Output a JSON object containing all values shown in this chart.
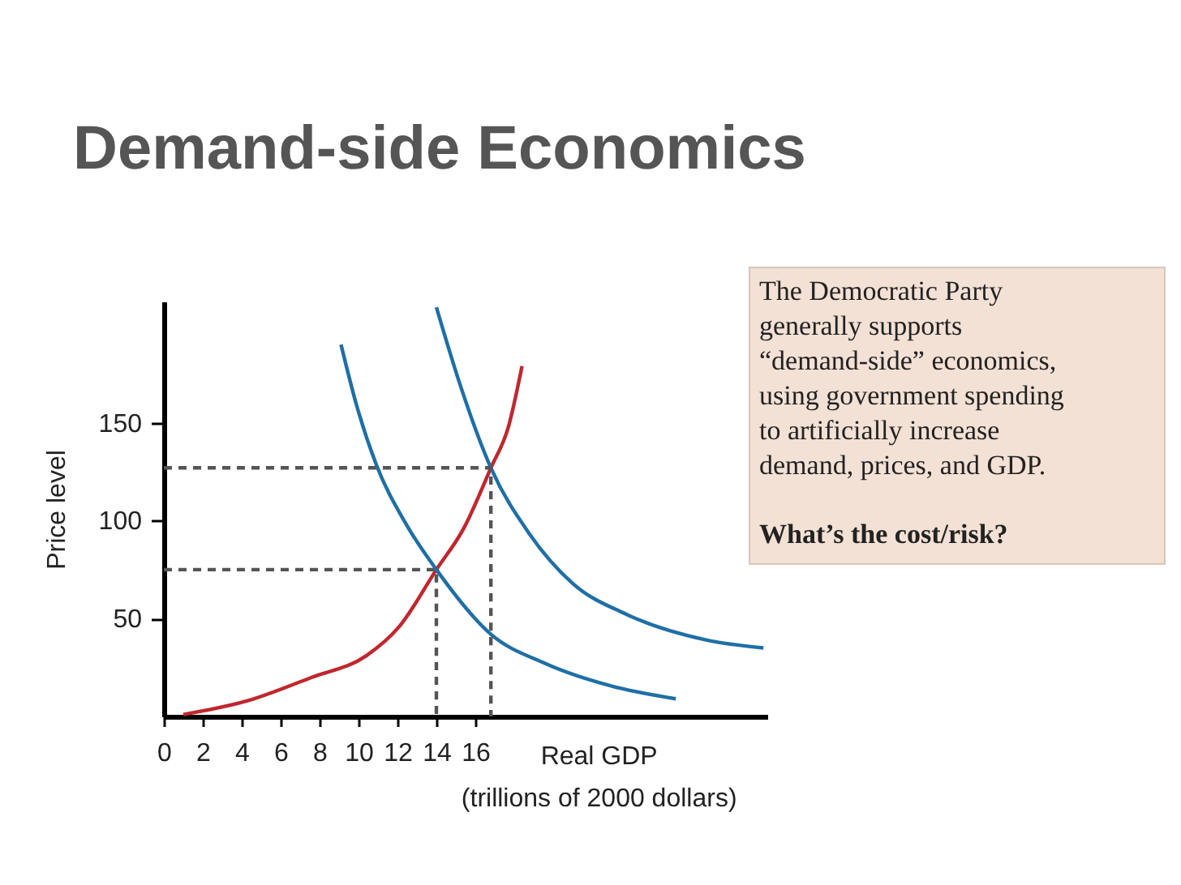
{
  "chart_data": {
    "type": "line",
    "title": "Demand-side Economics",
    "xlabel": "Real GDP\n(trillions of 2000 dollars)",
    "ylabel": "Price level",
    "xlim": [
      0,
      31
    ],
    "xticks": [
      0,
      2,
      4,
      6,
      8,
      10,
      12,
      14,
      16
    ],
    "ylim": [
      0,
      212
    ],
    "yticks": [
      50,
      100,
      150
    ],
    "grid": false,
    "marker": "none",
    "series": [
      {
        "color": "#c0272d",
        "line_style": "solid",
        "x": [
          1,
          4.3,
          7.6,
          10.4,
          12.1,
          14,
          15.4,
          16.8,
          17.7,
          18.4
        ],
        "values": [
          1,
          8,
          20,
          31,
          46,
          75,
          96,
          127,
          148,
          179
        ]
      },
      {
        "color": "#1f6fa6",
        "line_style": "solid",
        "x": [
          9.1,
          9.9,
          10.9,
          12.4,
          14,
          16.8,
          19.6,
          23.2,
          26.3
        ],
        "values": [
          190,
          159,
          129,
          99,
          75,
          42,
          27,
          15,
          9
        ]
      },
      {
        "color": "#1f6fa6",
        "line_style": "solid",
        "x": [
          14,
          15.2,
          16.8,
          18.8,
          21,
          23.8,
          27.9,
          30.8
        ],
        "values": [
          209,
          170,
          127,
          93,
          68,
          52,
          39,
          35
        ]
      },
      {
        "color": "#555555",
        "line_style": "dashed",
        "x": [
          0,
          16.8,
          16.8
        ],
        "values": [
          127,
          127,
          0
        ]
      },
      {
        "color": "#555555",
        "line_style": "dashed",
        "x": [
          0,
          14,
          14
        ],
        "values": [
          75,
          75,
          0
        ]
      }
    ],
    "annotations": [
      "The Democratic Party\ngenerally supports\n“demand-side” economics,\nusing government spending\nto artificially increase\ndemand, prices, and GDP.",
      "What’s the cost/risk?"
    ]
  }
}
